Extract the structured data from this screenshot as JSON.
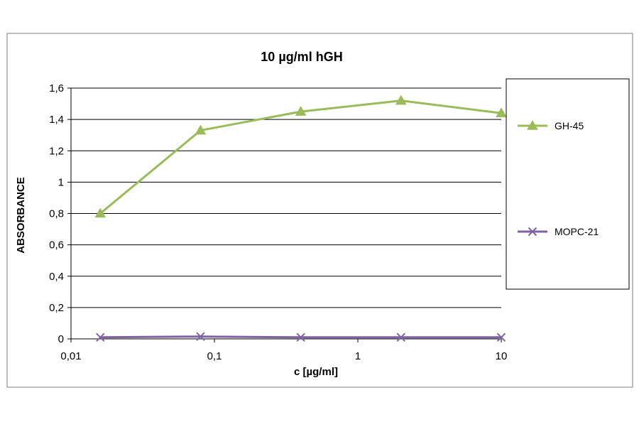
{
  "chart_data": {
    "type": "line",
    "title": "10 µg/ml hGH",
    "xlabel": "c [µg/ml]",
    "ylabel": "ABSORBANCE",
    "x_scale": "log",
    "xlim": [
      0.01,
      10
    ],
    "ylim": [
      0,
      1.6
    ],
    "x_ticks": [
      "0,01",
      "0,1",
      "1",
      "10"
    ],
    "y_ticks": [
      "0",
      "0,2",
      "0,4",
      "0,6",
      "0,8",
      "1",
      "1,2",
      "1,4",
      "1,6"
    ],
    "grid": "horizontal",
    "legend": "right",
    "series": [
      {
        "name": "GH-45",
        "color": "#9BBB59",
        "marker": "triangle",
        "x": [
          0.016,
          0.08,
          0.4,
          2,
          10
        ],
        "y": [
          0.8,
          1.33,
          1.45,
          1.52,
          1.44
        ]
      },
      {
        "name": "MOPC-21",
        "color": "#8064A2",
        "marker": "x",
        "x": [
          0.016,
          0.08,
          0.4,
          2,
          10
        ],
        "y": [
          0.01,
          0.015,
          0.01,
          0.01,
          0.01
        ]
      }
    ]
  }
}
